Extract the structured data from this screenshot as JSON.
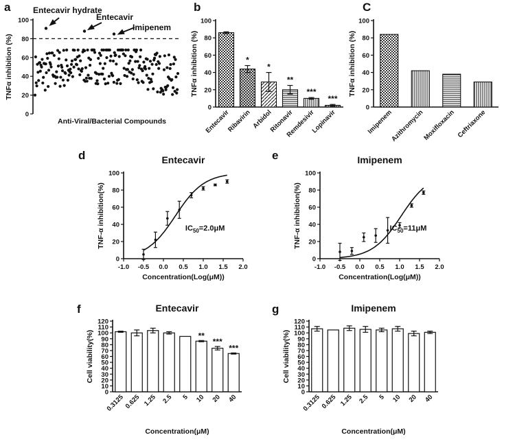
{
  "chart_data": [
    {
      "id": "a",
      "panel_label": "a",
      "type": "scatter",
      "title": "",
      "xlabel": "Anti-Viral/Bacterial Compounds",
      "ylabel": "TNFα inhibition (%)",
      "ylim": [
        0,
        100
      ],
      "yticks": [
        0,
        20,
        40,
        60,
        80,
        100
      ],
      "threshold": 80,
      "annotations": [
        {
          "text": "Entecavir hydrate",
          "x": 20,
          "y": 91
        },
        {
          "text": "Entecavir",
          "x": 90,
          "y": 88
        },
        {
          "text": "Imipenem",
          "x": 131,
          "y": 85
        }
      ],
      "n_points": 240
    },
    {
      "id": "b",
      "panel_label": "b",
      "type": "bar",
      "title": "",
      "xlabel": "",
      "ylabel": "TNFα inhibition (%)",
      "ylim": [
        0,
        100
      ],
      "yticks": [
        0,
        20,
        40,
        60,
        80,
        100
      ],
      "categories": [
        "Entecavir",
        "Ribavirin",
        "Arbidol",
        "Ritonavir",
        "Remdesivir",
        "Lopinavir"
      ],
      "values": [
        86,
        44,
        29,
        20,
        10,
        2
      ],
      "errors": [
        1,
        4,
        11,
        5,
        1,
        1
      ],
      "stars": [
        "",
        "*",
        "*",
        "**",
        "***",
        "***"
      ]
    },
    {
      "id": "c",
      "panel_label": "C",
      "type": "bar",
      "title": "",
      "xlabel": "",
      "ylabel": "TNFα inhibition (%)",
      "ylim": [
        0,
        100
      ],
      "yticks": [
        0,
        20,
        40,
        60,
        80,
        100
      ],
      "categories": [
        "Imipenem",
        "Azithromycin",
        "Moxifloxacin",
        "Ceftriaxone"
      ],
      "values": [
        84,
        42,
        38,
        29
      ]
    },
    {
      "id": "d",
      "panel_label": "d",
      "type": "scatter",
      "title": "Entecavir",
      "xlabel": "Concentration(Log(μM))",
      "ylabel": "TNF-α inhibition(%)",
      "xlim": [
        -1.0,
        2.0
      ],
      "xticks": [
        "-1.0",
        "-0.5",
        "0.0",
        "0.5",
        "1.0",
        "1.5",
        "2.0"
      ],
      "ylim": [
        0,
        100
      ],
      "yticks": [
        0,
        20,
        40,
        60,
        80,
        100
      ],
      "x": [
        -0.5,
        -0.2,
        0.1,
        0.4,
        0.7,
        1.0,
        1.3,
        1.6
      ],
      "y": [
        5,
        22,
        47,
        57,
        74,
        82,
        86,
        90
      ],
      "errors": [
        6,
        9,
        8,
        10,
        3,
        2,
        1,
        2
      ],
      "fit": {
        "ic50_log": 0.301,
        "hill": 1.2,
        "top": 100,
        "bottom": 0
      },
      "ic50_label": {
        "prefix": "IC",
        "sub": "50",
        "suffix": "=2.0μM"
      }
    },
    {
      "id": "e",
      "panel_label": "e",
      "type": "scatter",
      "title": "Imipenem",
      "xlabel": "Concentration(Log(μM))",
      "ylabel": "TNF-α inhibition(%)",
      "xlim": [
        -1.0,
        2.0
      ],
      "xticks": [
        "-1.0",
        "-0.5",
        "0.0",
        "0.5",
        "1.0",
        "1.5",
        "2.0"
      ],
      "ylim": [
        0,
        100
      ],
      "yticks": [
        0,
        20,
        40,
        60,
        80,
        100
      ],
      "x": [
        -0.5,
        -0.2,
        0.1,
        0.4,
        0.7,
        1.0,
        1.3,
        1.6
      ],
      "y": [
        8,
        9,
        25,
        27,
        33,
        39,
        62,
        77
      ],
      "errors": [
        10,
        4,
        5,
        8,
        15,
        3,
        2,
        2
      ],
      "fit": {
        "ic50_log": 1.041,
        "hill": 1.2,
        "top": 100,
        "bottom": 0
      },
      "ic50_label": {
        "prefix": "IC",
        "sub": "50",
        "suffix": "=11μM"
      }
    },
    {
      "id": "f",
      "panel_label": "f",
      "type": "bar",
      "title": "Entecavir",
      "xlabel": "Concentration(μM)",
      "ylabel": "Cell viability(%)",
      "ylim": [
        0,
        120
      ],
      "yticks": [
        0,
        10,
        20,
        30,
        40,
        50,
        60,
        70,
        80,
        90,
        100,
        110,
        120
      ],
      "categories": [
        "0.3125",
        "0.625",
        "1.25",
        "2.5",
        "5",
        "10",
        "20",
        "40"
      ],
      "values": [
        102,
        100,
        104,
        100,
        94,
        86,
        74,
        65
      ],
      "errors": [
        1,
        5,
        4,
        2,
        0,
        1,
        3,
        1
      ],
      "stars": [
        "",
        "",
        "",
        "",
        "",
        "**",
        "***",
        "***"
      ]
    },
    {
      "id": "g",
      "panel_label": "g",
      "type": "bar",
      "title": "Imipenem",
      "xlabel": "Concentration(μM)",
      "ylabel": "Cell viability(%)",
      "ylim": [
        0,
        120
      ],
      "yticks": [
        0,
        10,
        20,
        30,
        40,
        50,
        60,
        70,
        80,
        90,
        100,
        110,
        120
      ],
      "categories": [
        "0.3125",
        "0.625",
        "1.25",
        "2.5",
        "5",
        "10",
        "20",
        "40"
      ],
      "values": [
        107,
        105,
        108,
        106,
        105,
        107,
        99,
        101
      ],
      "errors": [
        4,
        0,
        4,
        5,
        3,
        4,
        4,
        2
      ],
      "stars": [
        "",
        "",
        "",
        "",
        "",
        "",
        "",
        ""
      ]
    }
  ]
}
